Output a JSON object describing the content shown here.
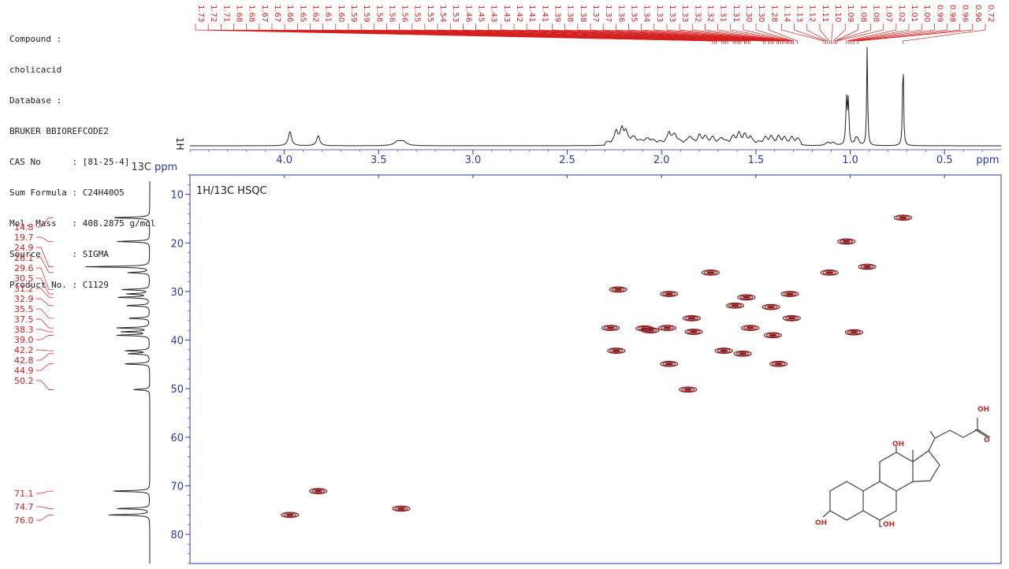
{
  "info": {
    "compound_label": "Compound :",
    "compound": "cholicacid",
    "database_label": "Database :",
    "database": "BRUKER BBIOREFCODE2",
    "cas": "CAS No      : [81-25-4]",
    "formula": "Sum Formula : C24H40O5",
    "mass": "Mol. Mass   : 408.2875 g/mol",
    "source": "Source      : SIGMA",
    "product": "Product No. : C1129"
  },
  "chart_data": {
    "type": "heatmap",
    "title": "1H/13C HSQC",
    "x_axis": {
      "label": "ppm",
      "range": [
        4.5,
        0.2
      ],
      "ticks": [
        4.0,
        3.5,
        3.0,
        2.5,
        2.0,
        1.5,
        1.0,
        0.5
      ],
      "tick_labels": [
        "4.0",
        "3.5",
        "3.0",
        "2.5",
        "2.0",
        "1.5",
        "1.0",
        "0.5"
      ]
    },
    "y_axis": {
      "label": "13C ppm",
      "range": [
        6,
        86
      ],
      "ticks": [
        10,
        20,
        30,
        40,
        50,
        60,
        70,
        80
      ],
      "tick_labels": [
        "10",
        "20",
        "30",
        "40",
        "50",
        "60",
        "70",
        "80"
      ]
    },
    "proj_1h_label": "1H",
    "h1_peak_labels": [
      "1.73",
      "1.72",
      "1.71",
      "1.68",
      "1.68",
      "1.67",
      "1.67",
      "1.66",
      "1.65",
      "1.62",
      "1.61",
      "1.60",
      "1.59",
      "1.59",
      "1.58",
      "1.56",
      "1.56",
      "1.55",
      "1.55",
      "1.54",
      "1.53",
      "1.46",
      "1.45",
      "1.43",
      "1.43",
      "1.42",
      "1.41",
      "1.41",
      "1.39",
      "1.38",
      "1.38",
      "1.37",
      "1.37",
      "1.36",
      "1.35",
      "1.34",
      "1.33",
      "1.33",
      "1.33",
      "1.32",
      "1.32",
      "1.31",
      "1.31",
      "1.30",
      "1.30",
      "1.28",
      "1.14",
      "1.13",
      "1.12",
      "1.11",
      "1.10",
      "1.09",
      "1.08",
      "1.08",
      "1.07",
      "1.02",
      "1.01",
      "1.00",
      "0.99",
      "0.98",
      "0.96",
      "0.96",
      "0.72"
    ],
    "c13_peak_labels": [
      "14.8",
      "19.7",
      "24.9",
      "26.1",
      "29.6",
      "30.5",
      "31.2",
      "32.9",
      "35.5",
      "37.5",
      "38.3",
      "39.0",
      "42.2",
      "42.8",
      "44.9",
      "50.2",
      "71.1",
      "74.7",
      "76.0"
    ],
    "c13_peaks": [
      14.8,
      19.7,
      24.9,
      26.1,
      29.6,
      30.5,
      31.2,
      32.9,
      35.5,
      37.5,
      38.3,
      39.0,
      42.2,
      42.8,
      44.9,
      50.2,
      71.1,
      74.7,
      76.0
    ],
    "c13_intensities": [
      0.35,
      0.3,
      0.58,
      0.2,
      0.25,
      0.2,
      0.3,
      0.22,
      0.2,
      0.3,
      0.25,
      0.3,
      0.22,
      0.2,
      0.24,
      0.15,
      0.35,
      0.3,
      0.38
    ],
    "h1_peaks": [
      {
        "x": 3.97,
        "h": 0.14,
        "w": 0.01
      },
      {
        "x": 3.82,
        "h": 0.1,
        "w": 0.01
      },
      {
        "x": 3.4,
        "h": 0.04,
        "w": 0.02
      },
      {
        "x": 3.37,
        "h": 0.04,
        "w": 0.02
      },
      {
        "x": 2.24,
        "h": 0.12,
        "w": 0.01
      },
      {
        "x": 2.21,
        "h": 0.13,
        "w": 0.01
      },
      {
        "x": 2.19,
        "h": 0.1,
        "w": 0.01
      },
      {
        "x": 2.15,
        "h": 0.05,
        "w": 0.02
      },
      {
        "x": 2.07,
        "h": 0.04,
        "w": 0.03
      },
      {
        "x": 1.96,
        "h": 0.1,
        "w": 0.01
      },
      {
        "x": 1.93,
        "h": 0.08,
        "w": 0.015
      },
      {
        "x": 1.85,
        "h": 0.07,
        "w": 0.01
      },
      {
        "x": 1.8,
        "h": 0.07,
        "w": 0.01
      },
      {
        "x": 1.77,
        "h": 0.06,
        "w": 0.012
      },
      {
        "x": 1.73,
        "h": 0.05,
        "w": 0.012
      },
      {
        "x": 1.68,
        "h": 0.05,
        "w": 0.012
      },
      {
        "x": 1.62,
        "h": 0.06,
        "w": 0.012
      },
      {
        "x": 1.59,
        "h": 0.09,
        "w": 0.01
      },
      {
        "x": 1.56,
        "h": 0.08,
        "w": 0.01
      },
      {
        "x": 1.53,
        "h": 0.06,
        "w": 0.01
      },
      {
        "x": 1.45,
        "h": 0.05,
        "w": 0.012
      },
      {
        "x": 1.42,
        "h": 0.06,
        "w": 0.01
      },
      {
        "x": 1.38,
        "h": 0.06,
        "w": 0.01
      },
      {
        "x": 1.35,
        "h": 0.05,
        "w": 0.01
      },
      {
        "x": 1.31,
        "h": 0.05,
        "w": 0.01
      },
      {
        "x": 1.28,
        "h": 0.04,
        "w": 0.012
      },
      {
        "x": 1.12,
        "h": 0.03,
        "w": 0.012
      },
      {
        "x": 1.09,
        "h": 0.03,
        "w": 0.012
      },
      {
        "x": 1.02,
        "h": 0.46,
        "w": 0.004
      },
      {
        "x": 1.01,
        "h": 0.44,
        "w": 0.004
      },
      {
        "x": 0.97,
        "h": 0.06,
        "w": 0.008
      },
      {
        "x": 0.96,
        "h": 0.05,
        "w": 0.008
      },
      {
        "x": 0.91,
        "h": 1.0,
        "w": 0.003
      },
      {
        "x": 0.72,
        "h": 0.98,
        "w": 0.003
      }
    ],
    "cross_peaks": [
      {
        "h": 0.72,
        "c": 14.8
      },
      {
        "h": 1.02,
        "c": 19.7
      },
      {
        "h": 0.91,
        "c": 24.9
      },
      {
        "h": 1.74,
        "c": 26.1
      },
      {
        "h": 1.11,
        "c": 26.1
      },
      {
        "h": 2.23,
        "c": 29.6
      },
      {
        "h": 1.96,
        "c": 30.5
      },
      {
        "h": 1.32,
        "c": 30.5
      },
      {
        "h": 1.55,
        "c": 31.2
      },
      {
        "h": 1.61,
        "c": 32.9
      },
      {
        "h": 1.42,
        "c": 33.2
      },
      {
        "h": 1.84,
        "c": 35.5
      },
      {
        "h": 1.31,
        "c": 35.5
      },
      {
        "h": 2.27,
        "c": 37.5
      },
      {
        "h": 2.09,
        "c": 37.6
      },
      {
        "h": 1.97,
        "c": 37.5
      },
      {
        "h": 1.53,
        "c": 37.5
      },
      {
        "h": 2.06,
        "c": 38.0
      },
      {
        "h": 1.83,
        "c": 38.3
      },
      {
        "h": 0.98,
        "c": 38.4
      },
      {
        "h": 1.41,
        "c": 39.0
      },
      {
        "h": 2.24,
        "c": 42.2
      },
      {
        "h": 1.67,
        "c": 42.2
      },
      {
        "h": 1.57,
        "c": 42.8
      },
      {
        "h": 1.96,
        "c": 44.9
      },
      {
        "h": 1.38,
        "c": 44.9
      },
      {
        "h": 1.86,
        "c": 50.2
      },
      {
        "h": 3.82,
        "c": 71.1
      },
      {
        "h": 3.38,
        "c": 74.7
      },
      {
        "h": 3.97,
        "c": 76.0
      }
    ],
    "colors": {
      "contour": "#8a1a1a",
      "peak_label": "#d42020",
      "axis": "#2b3aa8",
      "trace": "#222222"
    }
  },
  "structure_labels": {
    "oh_acid": "OH",
    "o_acid": "O",
    "oh_12": "OH",
    "oh_3": "OH",
    "oh_7": "OH"
  }
}
